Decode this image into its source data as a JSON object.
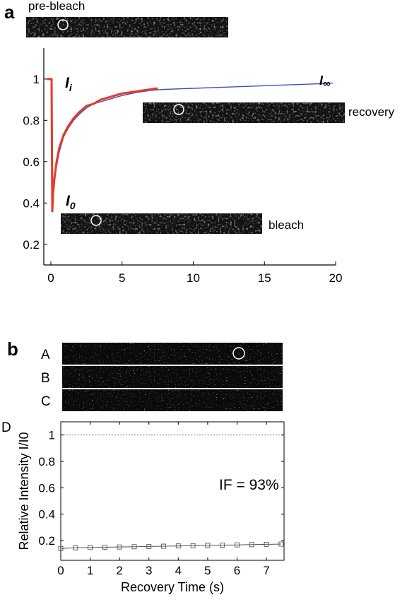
{
  "panel_a": {
    "panel_label": "a",
    "images": {
      "prebleach": "pre-bleach",
      "recovery": "recovery",
      "bleach": "bleach"
    },
    "annotations": {
      "initial": "I",
      "initial_sub": "i",
      "zero": "I",
      "zero_sub": "0",
      "infinity": "I",
      "infinity_sub": "∞"
    }
  },
  "panel_b": {
    "panel_label": "b",
    "row_labels": [
      "A",
      "B",
      "C"
    ],
    "side_label": "D",
    "annotation": "IF = 93%"
  },
  "chart_data": [
    {
      "type": "line",
      "title": "",
      "xlabel": "",
      "ylabel": "",
      "xlim": [
        0,
        20
      ],
      "ylim": [
        0.1,
        1.15
      ],
      "x_ticks": [
        0,
        5,
        10,
        15,
        20
      ],
      "y_ticks": [
        0.2,
        0.4,
        0.6,
        0.8,
        1
      ],
      "y_tick_labels": [
        "0.2",
        "0.4",
        "0.6",
        "0.8",
        "1"
      ],
      "grid": false,
      "series": [
        {
          "color": "#e8392b",
          "x": [
            -0.3,
            0.05,
            0.1,
            0.15,
            0.25,
            0.4,
            0.6,
            0.9,
            1.2,
            1.6,
            2.0,
            2.5,
            3.0,
            3.5,
            4.0,
            4.5,
            5.0,
            5.5,
            6.0,
            6.5,
            7.0,
            7.5
          ],
          "y": [
            1.0,
            1.0,
            0.36,
            0.44,
            0.52,
            0.6,
            0.67,
            0.73,
            0.77,
            0.81,
            0.84,
            0.87,
            0.88,
            0.9,
            0.91,
            0.92,
            0.93,
            0.935,
            0.94,
            0.945,
            0.95,
            0.955
          ]
        },
        {
          "color": "#3b4fbf",
          "x": [
            0.1,
            0.25,
            0.4,
            0.6,
            0.9,
            1.2,
            1.6,
            2.0,
            2.5,
            3.0,
            3.5,
            4.0,
            5.0,
            6.0,
            7.0,
            8.0,
            10.0,
            12.0,
            14.0,
            16.0,
            18.0,
            19.8
          ],
          "y": [
            0.36,
            0.5,
            0.58,
            0.65,
            0.72,
            0.76,
            0.8,
            0.83,
            0.86,
            0.88,
            0.89,
            0.9,
            0.92,
            0.935,
            0.945,
            0.95,
            0.955,
            0.96,
            0.965,
            0.97,
            0.975,
            0.98
          ]
        }
      ]
    },
    {
      "type": "line",
      "title": "",
      "xlabel": "Recovery Time (s)",
      "ylabel": "Relative Intensity I/I0",
      "xlim": [
        0,
        7.6
      ],
      "ylim": [
        0.05,
        1.1
      ],
      "x_ticks": [
        0,
        1,
        2,
        3,
        4,
        5,
        6,
        7
      ],
      "y_ticks": [
        0.2,
        0.4,
        0.6,
        0.8,
        1
      ],
      "y_tick_labels": [
        "0.2",
        "0.4",
        "0.6",
        "0.8",
        "1"
      ],
      "grid": false,
      "reference_line": 1.0,
      "series": [
        {
          "color": "#555555",
          "marker": "square",
          "x": [
            0.0,
            0.5,
            1.0,
            1.5,
            2.0,
            2.5,
            3.0,
            3.5,
            4.0,
            4.5,
            5.0,
            5.5,
            6.0,
            6.5,
            7.0,
            7.5
          ],
          "y": [
            0.14,
            0.145,
            0.147,
            0.149,
            0.151,
            0.153,
            0.155,
            0.157,
            0.159,
            0.161,
            0.163,
            0.165,
            0.167,
            0.169,
            0.171,
            0.173
          ]
        }
      ]
    }
  ]
}
